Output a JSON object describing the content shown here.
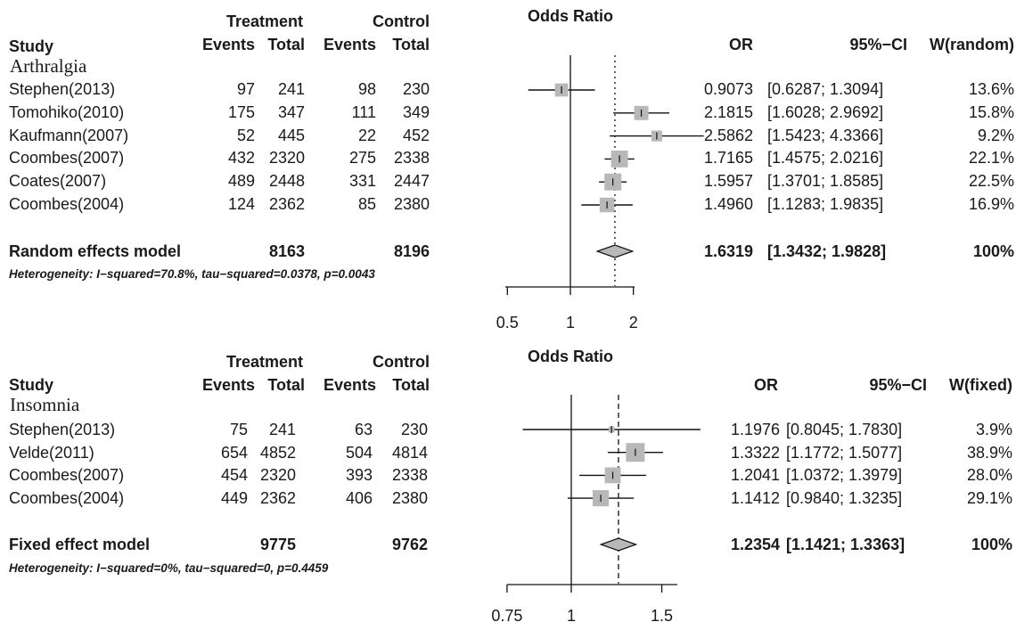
{
  "chart_data": [
    {
      "type": "forest",
      "title": "Odds Ratio",
      "group_label": "Arthralgia",
      "headers": {
        "treatment": "Treatment",
        "control": "Control",
        "study": "Study",
        "events": "Events",
        "total": "Total",
        "or": "OR",
        "ci": "95%−CI",
        "weight": "W(random)"
      },
      "studies": [
        {
          "name": "Stephen(2013)",
          "t_events": "97",
          "t_total": "241",
          "c_events": "98",
          "c_total": "230",
          "or": 0.9073,
          "lower": 0.6287,
          "upper": 1.3094,
          "or_text": "0.9073",
          "ci_text": "[0.6287; 1.3094]",
          "weight": 13.6,
          "weight_text": "13.6%"
        },
        {
          "name": "Tomohiko(2010)",
          "t_events": "175",
          "t_total": "347",
          "c_events": "111",
          "c_total": "349",
          "or": 2.1815,
          "lower": 1.6028,
          "upper": 2.9692,
          "or_text": "2.1815",
          "ci_text": "[1.6028; 2.9692]",
          "weight": 15.8,
          "weight_text": "15.8%"
        },
        {
          "name": "Kaufmann(2007)",
          "t_events": "52",
          "t_total": "445",
          "c_events": "22",
          "c_total": "452",
          "or": 2.5862,
          "lower": 1.5423,
          "upper": 4.3366,
          "or_text": "2.5862",
          "ci_text": "[1.5423; 4.3366]",
          "weight": 9.2,
          "weight_text": "9.2%"
        },
        {
          "name": "Coombes(2007)",
          "t_events": "432",
          "t_total": "2320",
          "c_events": "275",
          "c_total": "2338",
          "or": 1.7165,
          "lower": 1.4575,
          "upper": 2.0216,
          "or_text": "1.7165",
          "ci_text": "[1.4575; 2.0216]",
          "weight": 22.1,
          "weight_text": "22.1%"
        },
        {
          "name": "Coates(2007)",
          "t_events": "489",
          "t_total": "2448",
          "c_events": "331",
          "c_total": "2447",
          "or": 1.5957,
          "lower": 1.3701,
          "upper": 1.8585,
          "or_text": "1.5957",
          "ci_text": "[1.3701; 1.8585]",
          "weight": 22.5,
          "weight_text": "22.5%"
        },
        {
          "name": "Coombes(2004)",
          "t_events": "124",
          "t_total": "2362",
          "c_events": "85",
          "c_total": "2380",
          "or": 1.496,
          "lower": 1.1283,
          "upper": 1.9835,
          "or_text": "1.4960",
          "ci_text": "[1.1283; 1.9835]",
          "weight": 16.9,
          "weight_text": "16.9%"
        }
      ],
      "pooled": {
        "label": "Random effects model",
        "t_total": "8163",
        "c_total": "8196",
        "or": 1.6319,
        "lower": 1.3432,
        "upper": 1.9828,
        "or_text": "1.6319",
        "ci_text": "[1.3432; 1.9828]",
        "weight_text": "100%"
      },
      "heterogeneity": "Heterogeneity: I−squared=70.8%, tau−squared=0.0378, p=0.0043",
      "x_scale": "log",
      "ticks": [
        {
          "value": 0.5,
          "label": "0.5"
        },
        {
          "value": 1,
          "label": "1"
        },
        {
          "value": 2,
          "label": "2"
        }
      ],
      "pooled_line": "dotted"
    },
    {
      "type": "forest",
      "title": "Odds Ratio",
      "group_label": "Insomnia",
      "headers": {
        "treatment": "Treatment",
        "control": "Control",
        "study": "Study",
        "events": "Events",
        "total": "Total",
        "or": "OR",
        "ci": "95%−CI",
        "weight": "W(fixed)"
      },
      "studies": [
        {
          "name": "Stephen(2013)",
          "t_events": "75",
          "t_total": "241",
          "c_events": "63",
          "c_total": "230",
          "or": 1.1976,
          "lower": 0.8045,
          "upper": 1.783,
          "or_text": "1.1976",
          "ci_text": "[0.8045; 1.7830]",
          "weight": 3.9,
          "weight_text": "3.9%"
        },
        {
          "name": "Velde(2011)",
          "t_events": "654",
          "t_total": "4852",
          "c_events": "504",
          "c_total": "4814",
          "or": 1.3322,
          "lower": 1.1772,
          "upper": 1.5077,
          "or_text": "1.3322",
          "ci_text": "[1.1772; 1.5077]",
          "weight": 38.9,
          "weight_text": "38.9%"
        },
        {
          "name": "Coombes(2007)",
          "t_events": "454",
          "t_total": "2320",
          "c_events": "393",
          "c_total": "2338",
          "or": 1.2041,
          "lower": 1.0372,
          "upper": 1.3979,
          "or_text": "1.2041",
          "ci_text": "[1.0372; 1.3979]",
          "weight": 28.0,
          "weight_text": "28.0%"
        },
        {
          "name": "Coombes(2004)",
          "t_events": "449",
          "t_total": "2362",
          "c_events": "406",
          "c_total": "2380",
          "or": 1.1412,
          "lower": 0.984,
          "upper": 1.3235,
          "or_text": "1.1412",
          "ci_text": "[0.9840; 1.3235]",
          "weight": 29.1,
          "weight_text": "29.1%"
        }
      ],
      "pooled": {
        "label": "Fixed effect model",
        "t_total": "9775",
        "c_total": "9762",
        "or": 1.2354,
        "lower": 1.1421,
        "upper": 1.3363,
        "or_text": "1.2354",
        "ci_text": "[1.1421; 1.3363]",
        "weight_text": "100%"
      },
      "heterogeneity": "Heterogeneity: I−squared=0%, tau−squared=0, p=0.4459",
      "x_scale": "log",
      "ticks": [
        {
          "value": 0.75,
          "label": "0.75"
        },
        {
          "value": 1,
          "label": "1"
        },
        {
          "value": 1.5,
          "label": "1.5"
        }
      ],
      "pooled_line": "dashed"
    }
  ]
}
